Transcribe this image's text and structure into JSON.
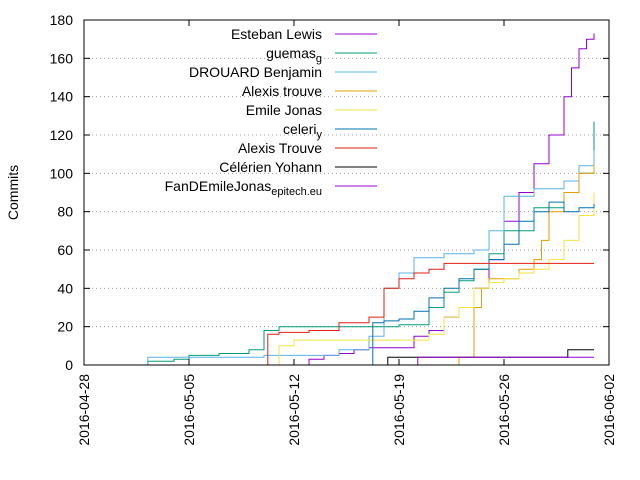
{
  "chart_data": {
    "type": "line",
    "title": "",
    "xlabel": "",
    "ylabel": "Commits",
    "x_scale": "date",
    "xlim": [
      "2016-04-28",
      "2016-06-02"
    ],
    "ylim": [
      0,
      180
    ],
    "x_ticks": [
      "2016-04-28",
      "2016-05-05",
      "2016-05-12",
      "2016-05-19",
      "2016-05-26",
      "2016-06-02"
    ],
    "y_ticks": [
      0,
      20,
      40,
      60,
      80,
      100,
      120,
      140,
      160,
      180
    ],
    "grid": "horizontal dotted",
    "legend_position": "top-left inside",
    "series": [
      {
        "name": "Esteban Lewis",
        "color": "#9400d3",
        "points": [
          [
            "2016-05-12",
            0
          ],
          [
            "2016-05-13",
            3
          ],
          [
            "2016-05-14",
            5
          ],
          [
            "2016-05-15",
            6
          ],
          [
            "2016-05-16",
            8
          ],
          [
            "2016-05-17",
            9
          ],
          [
            "2016-05-19",
            9
          ],
          [
            "2016-05-20",
            15
          ],
          [
            "2016-05-21",
            18
          ],
          [
            "2016-05-22",
            25
          ],
          [
            "2016-05-23",
            30
          ],
          [
            "2016-05-24",
            40
          ],
          [
            "2016-05-25",
            55
          ],
          [
            "2016-05-26",
            75
          ],
          [
            "2016-05-27",
            90
          ],
          [
            "2016-05-28",
            105
          ],
          [
            "2016-05-29",
            120
          ],
          [
            "2016-05-30",
            140
          ],
          [
            "2016-05-30T12:00",
            155
          ],
          [
            "2016-05-31",
            165
          ],
          [
            "2016-05-31T12:00",
            170
          ],
          [
            "2016-06-01",
            173
          ]
        ]
      },
      {
        "name": "guemas_g",
        "color": "#009e73",
        "points": [
          [
            "2016-05-02",
            0
          ],
          [
            "2016-05-02T06:00",
            2
          ],
          [
            "2016-05-04",
            3
          ],
          [
            "2016-05-05",
            5
          ],
          [
            "2016-05-07",
            6
          ],
          [
            "2016-05-09",
            8
          ],
          [
            "2016-05-10",
            18
          ],
          [
            "2016-05-11",
            20
          ],
          [
            "2016-05-17",
            20
          ],
          [
            "2016-05-18",
            20
          ],
          [
            "2016-05-19",
            21
          ],
          [
            "2016-05-21",
            30
          ],
          [
            "2016-05-22",
            38
          ],
          [
            "2016-05-23",
            44
          ],
          [
            "2016-05-24",
            50
          ],
          [
            "2016-05-25",
            58
          ],
          [
            "2016-05-26",
            70
          ],
          [
            "2016-05-28",
            82
          ],
          [
            "2016-05-30",
            90
          ],
          [
            "2016-05-31",
            100
          ],
          [
            "2016-06-01",
            127
          ]
        ]
      },
      {
        "name": "DROUARD Benjamin",
        "color": "#56b4e9",
        "points": [
          [
            "2016-05-02",
            0
          ],
          [
            "2016-05-02T06:00",
            4
          ],
          [
            "2016-05-10",
            5
          ],
          [
            "2016-05-15",
            8
          ],
          [
            "2016-05-17",
            15
          ],
          [
            "2016-05-18",
            40
          ],
          [
            "2016-05-19",
            48
          ],
          [
            "2016-05-20",
            56
          ],
          [
            "2016-05-22",
            58
          ],
          [
            "2016-05-24",
            60
          ],
          [
            "2016-05-25",
            70
          ],
          [
            "2016-05-26",
            88
          ],
          [
            "2016-05-28",
            92
          ],
          [
            "2016-05-30",
            96
          ],
          [
            "2016-05-31",
            104
          ],
          [
            "2016-06-01",
            112
          ]
        ]
      },
      {
        "name": "Alexis trouve",
        "color": "#e69f00",
        "points": [
          [
            "2016-05-22",
            0
          ],
          [
            "2016-05-23",
            4
          ],
          [
            "2016-05-24",
            30
          ],
          [
            "2016-05-24T12:00",
            40
          ],
          [
            "2016-05-25",
            45
          ],
          [
            "2016-05-27",
            50
          ],
          [
            "2016-05-28",
            55
          ],
          [
            "2016-05-28T12:00",
            65
          ],
          [
            "2016-05-29",
            80
          ],
          [
            "2016-05-30",
            90
          ],
          [
            "2016-05-31",
            100
          ],
          [
            "2016-06-01",
            105
          ]
        ]
      },
      {
        "name": "Emile Jonas",
        "color": "#f0e442",
        "points": [
          [
            "2016-05-10",
            0
          ],
          [
            "2016-05-11",
            10
          ],
          [
            "2016-05-12",
            13
          ],
          [
            "2016-05-19",
            13
          ],
          [
            "2016-05-21",
            16
          ],
          [
            "2016-05-22",
            25
          ],
          [
            "2016-05-23",
            30
          ],
          [
            "2016-05-24",
            40
          ],
          [
            "2016-05-25",
            43
          ],
          [
            "2016-05-26",
            45
          ],
          [
            "2016-05-27",
            48
          ],
          [
            "2016-05-28",
            50
          ],
          [
            "2016-05-29",
            55
          ],
          [
            "2016-05-30",
            65
          ],
          [
            "2016-05-31",
            78
          ],
          [
            "2016-06-01",
            90
          ]
        ]
      },
      {
        "name": "celeri_y",
        "color": "#0072b2",
        "points": [
          [
            "2016-05-17",
            0
          ],
          [
            "2016-05-17T06:00",
            22
          ],
          [
            "2016-05-18",
            23
          ],
          [
            "2016-05-19",
            24
          ],
          [
            "2016-05-20",
            28
          ],
          [
            "2016-05-21",
            35
          ],
          [
            "2016-05-22",
            40
          ],
          [
            "2016-05-23",
            45
          ],
          [
            "2016-05-24",
            50
          ],
          [
            "2016-05-25",
            55
          ],
          [
            "2016-05-26",
            63
          ],
          [
            "2016-05-27",
            75
          ],
          [
            "2016-05-28",
            80
          ],
          [
            "2016-05-29",
            85
          ],
          [
            "2016-05-30",
            80
          ],
          [
            "2016-05-31",
            82
          ],
          [
            "2016-06-01",
            84
          ]
        ]
      },
      {
        "name": "Alexis Trouve",
        "color": "#e51e10",
        "points": [
          [
            "2016-05-10",
            0
          ],
          [
            "2016-05-10T06:00",
            16
          ],
          [
            "2016-05-11",
            17
          ],
          [
            "2016-05-13",
            18
          ],
          [
            "2016-05-15",
            22
          ],
          [
            "2016-05-17",
            25
          ],
          [
            "2016-05-18",
            40
          ],
          [
            "2016-05-19",
            45
          ],
          [
            "2016-05-20",
            48
          ],
          [
            "2016-05-21",
            50
          ],
          [
            "2016-05-22",
            53
          ],
          [
            "2016-06-01",
            53
          ]
        ]
      },
      {
        "name": "Célérien Yohann",
        "color": "#000000",
        "points": [
          [
            "2016-05-18",
            0
          ],
          [
            "2016-05-18T06:00",
            4
          ],
          [
            "2016-05-30",
            4
          ],
          [
            "2016-05-30T06:00",
            8
          ],
          [
            "2016-06-01",
            8
          ]
        ]
      },
      {
        "name": "FanDEmileJonas_epitech.eu",
        "color": "#9400d3",
        "points": [
          [
            "2016-05-20",
            0
          ],
          [
            "2016-05-20T06:00",
            4
          ],
          [
            "2016-06-01",
            4
          ]
        ]
      }
    ]
  }
}
